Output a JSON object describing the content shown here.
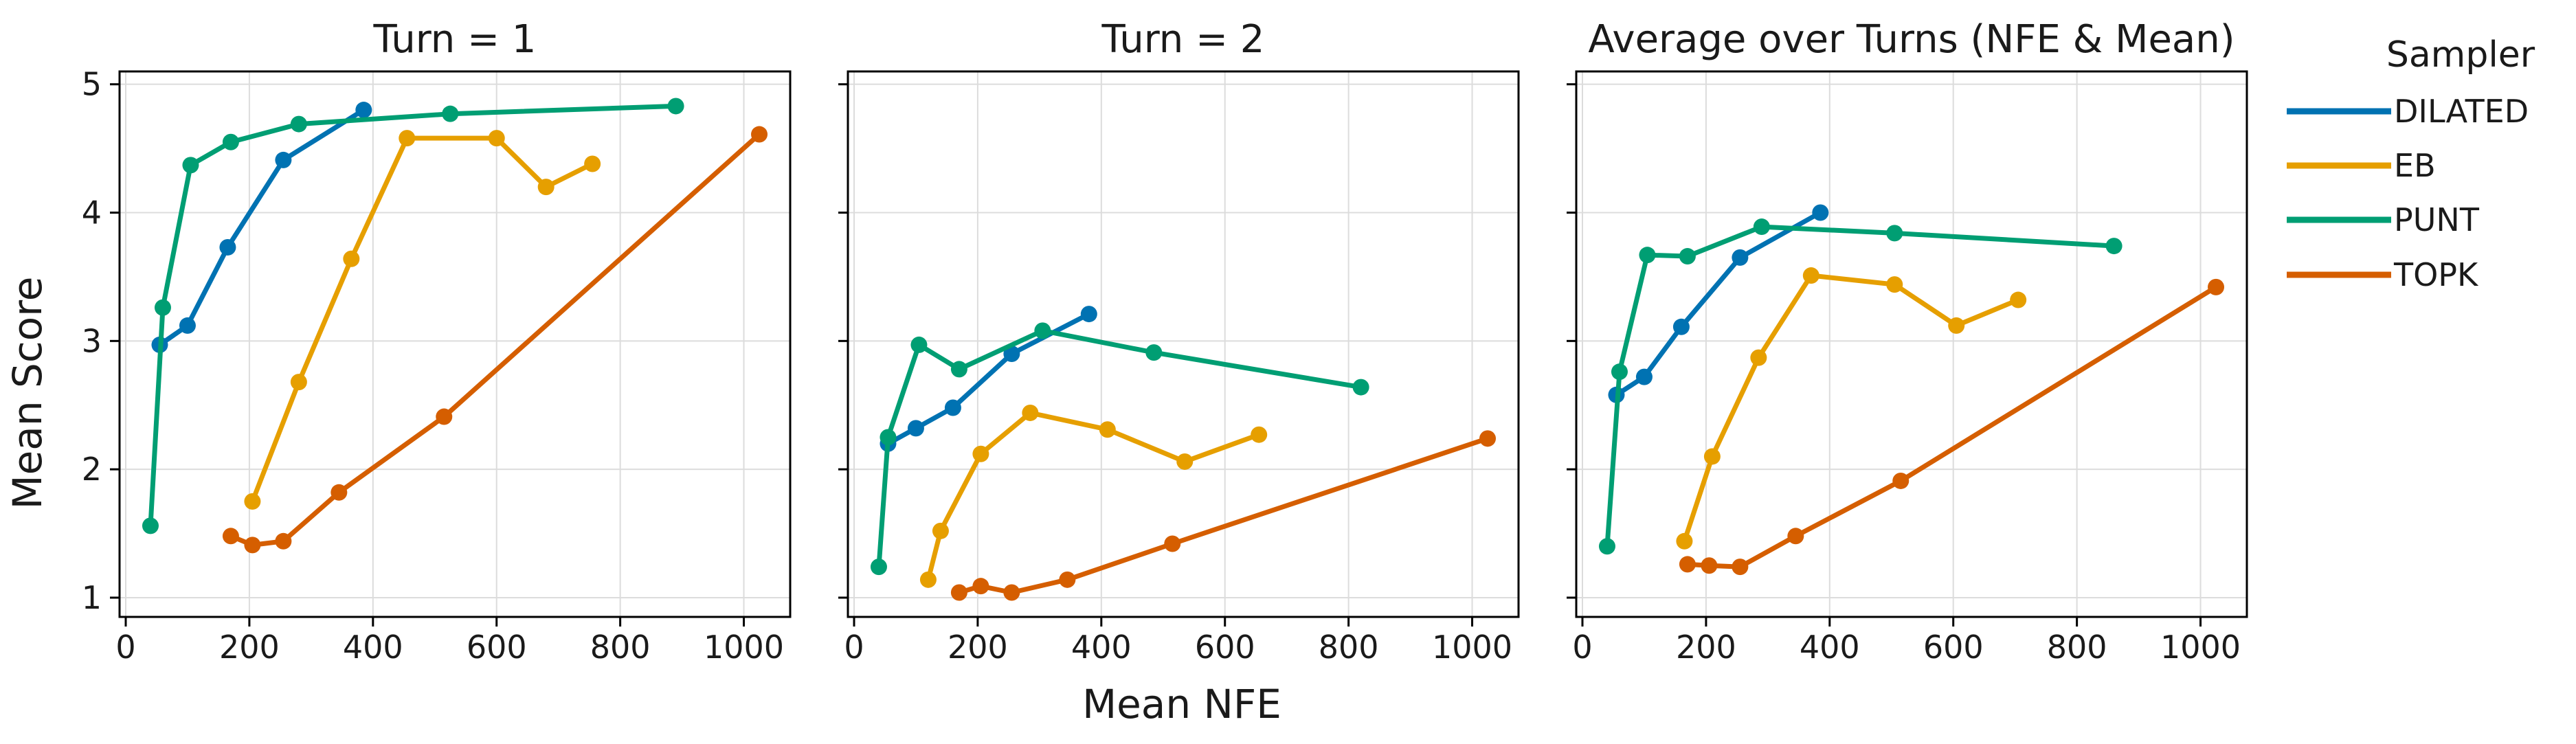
{
  "figure": {
    "ylabel": "Mean Score",
    "xlabel": "Mean NFE",
    "legend_title": "Sampler"
  },
  "series_styles": [
    {
      "name": "DILATED",
      "color": "#0072B2"
    },
    {
      "name": "EB",
      "color": "#E69F00"
    },
    {
      "name": "PUNT",
      "color": "#009E73"
    },
    {
      "name": "TOPK",
      "color": "#D55E00"
    }
  ],
  "chart_data": [
    {
      "type": "line",
      "title": "Turn = 1",
      "xlabel": "",
      "ylabel": "Mean Score",
      "xlim": [
        -10,
        1075
      ],
      "ylim": [
        0.85,
        5.1
      ],
      "xticks": [
        0,
        200,
        400,
        600,
        800,
        1000
      ],
      "yticks": [
        1,
        2,
        3,
        4,
        5
      ],
      "grid": true,
      "series": [
        {
          "name": "DILATED",
          "x": [
            55,
            100,
            165,
            255,
            385
          ],
          "y": [
            2.97,
            3.12,
            3.73,
            4.41,
            4.8
          ]
        },
        {
          "name": "EB",
          "x": [
            205,
            280,
            365,
            455,
            600,
            680,
            755
          ],
          "y": [
            1.75,
            2.68,
            3.64,
            4.58,
            4.58,
            4.2,
            4.38
          ]
        },
        {
          "name": "PUNT",
          "x": [
            40,
            60,
            105,
            170,
            280,
            525,
            890
          ],
          "y": [
            1.56,
            3.26,
            4.37,
            4.55,
            4.69,
            4.77,
            4.83
          ]
        },
        {
          "name": "TOPK",
          "x": [
            170,
            205,
            255,
            345,
            515,
            1025
          ],
          "y": [
            1.48,
            1.41,
            1.44,
            1.82,
            2.41,
            4.61
          ]
        }
      ]
    },
    {
      "type": "line",
      "title": "Turn = 2",
      "xlabel": "Mean NFE",
      "ylabel": "",
      "xlim": [
        -10,
        1075
      ],
      "ylim": [
        0.85,
        5.1
      ],
      "xticks": [
        0,
        200,
        400,
        600,
        800,
        1000
      ],
      "yticks": [
        1,
        2,
        3,
        4,
        5
      ],
      "grid": true,
      "series": [
        {
          "name": "DILATED",
          "x": [
            55,
            100,
            160,
            255,
            380
          ],
          "y": [
            2.2,
            2.32,
            2.48,
            2.9,
            3.21
          ]
        },
        {
          "name": "EB",
          "x": [
            120,
            140,
            205,
            285,
            410,
            535,
            655
          ],
          "y": [
            1.14,
            1.52,
            2.12,
            2.44,
            2.31,
            2.06,
            2.27
          ]
        },
        {
          "name": "PUNT",
          "x": [
            40,
            55,
            105,
            170,
            305,
            485,
            820
          ],
          "y": [
            1.24,
            2.25,
            2.97,
            2.78,
            3.08,
            2.91,
            2.64
          ]
        },
        {
          "name": "TOPK",
          "x": [
            170,
            205,
            255,
            345,
            515,
            1025
          ],
          "y": [
            1.04,
            1.09,
            1.04,
            1.14,
            1.42,
            2.24
          ]
        }
      ]
    },
    {
      "type": "line",
      "title": "Average over Turns (NFE & Mean)",
      "xlabel": "",
      "ylabel": "",
      "xlim": [
        -10,
        1075
      ],
      "ylim": [
        0.85,
        5.1
      ],
      "xticks": [
        0,
        200,
        400,
        600,
        800,
        1000
      ],
      "yticks": [
        1,
        2,
        3,
        4,
        5
      ],
      "grid": true,
      "series": [
        {
          "name": "DILATED",
          "x": [
            55,
            100,
            160,
            255,
            385
          ],
          "y": [
            2.58,
            2.72,
            3.11,
            3.65,
            4.0
          ]
        },
        {
          "name": "EB",
          "x": [
            165,
            210,
            285,
            370,
            505,
            605,
            705
          ],
          "y": [
            1.44,
            2.1,
            2.87,
            3.51,
            3.44,
            3.12,
            3.32
          ]
        },
        {
          "name": "PUNT",
          "x": [
            40,
            60,
            105,
            170,
            290,
            505,
            860
          ],
          "y": [
            1.4,
            2.76,
            3.67,
            3.66,
            3.89,
            3.84,
            3.74
          ]
        },
        {
          "name": "TOPK",
          "x": [
            170,
            205,
            255,
            345,
            515,
            1025
          ],
          "y": [
            1.26,
            1.25,
            1.24,
            1.48,
            1.91,
            3.42
          ]
        }
      ]
    }
  ]
}
